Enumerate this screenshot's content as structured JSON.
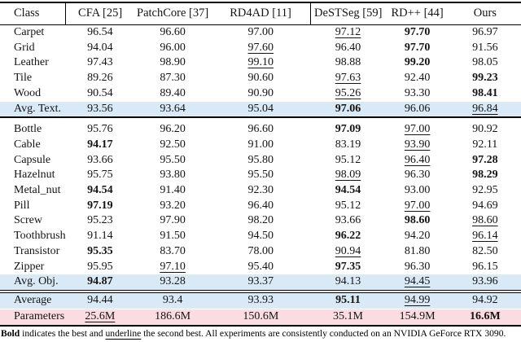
{
  "colors": {
    "highlight_blue": "#d9e9f6",
    "highlight_pink": "#fbdce1",
    "rule_black": "#000000"
  },
  "table": {
    "header": [
      "Class",
      "CFA [25]",
      "PatchCore [37]",
      "RD4AD [11]",
      "DeSTSeg [59]",
      "RD++ [44]",
      "Ours"
    ],
    "header_dividers_after": [
      0,
      3
    ],
    "rows": [
      {
        "label": "Carpet",
        "hl": "",
        "cells": [
          [
            "96.54",
            ""
          ],
          [
            "96.60",
            ""
          ],
          [
            "97.00",
            ""
          ],
          [
            "97.12",
            "u"
          ],
          [
            "97.70",
            "b"
          ],
          [
            "96.97",
            ""
          ]
        ]
      },
      {
        "label": "Grid",
        "hl": "",
        "cells": [
          [
            "94.04",
            ""
          ],
          [
            "96.00",
            ""
          ],
          [
            "97.60",
            "u"
          ],
          [
            "96.40",
            ""
          ],
          [
            "97.70",
            "b"
          ],
          [
            "91.56",
            ""
          ]
        ]
      },
      {
        "label": "Leather",
        "hl": "",
        "cells": [
          [
            "97.43",
            ""
          ],
          [
            "98.90",
            ""
          ],
          [
            "99.10",
            "u"
          ],
          [
            "98.88",
            ""
          ],
          [
            "99.20",
            "b"
          ],
          [
            "98.05",
            ""
          ]
        ]
      },
      {
        "label": "Tile",
        "hl": "",
        "cells": [
          [
            "89.26",
            ""
          ],
          [
            "87.30",
            ""
          ],
          [
            "90.60",
            ""
          ],
          [
            "97.63",
            "u"
          ],
          [
            "92.40",
            ""
          ],
          [
            "99.23",
            "b"
          ]
        ]
      },
      {
        "label": "Wood",
        "hl": "",
        "cells": [
          [
            "90.54",
            ""
          ],
          [
            "89.40",
            ""
          ],
          [
            "90.90",
            ""
          ],
          [
            "95.26",
            "u"
          ],
          [
            "93.30",
            ""
          ],
          [
            "98.41",
            "b"
          ]
        ]
      },
      {
        "label": "Avg. Text.",
        "hl": "blue",
        "rule_after": "single",
        "cells": [
          [
            "93.56",
            ""
          ],
          [
            "93.64",
            ""
          ],
          [
            "95.04",
            ""
          ],
          [
            "97.06",
            "b"
          ],
          [
            "96.06",
            ""
          ],
          [
            "96.84",
            "u"
          ]
        ]
      },
      {
        "label": "Bottle",
        "hl": "",
        "cells": [
          [
            "95.76",
            ""
          ],
          [
            "96.20",
            ""
          ],
          [
            "96.60",
            ""
          ],
          [
            "97.09",
            "b"
          ],
          [
            "97.00",
            "u"
          ],
          [
            "90.92",
            ""
          ]
        ]
      },
      {
        "label": "Cable",
        "hl": "",
        "cells": [
          [
            "94.17",
            "b"
          ],
          [
            "92.50",
            ""
          ],
          [
            "91.00",
            ""
          ],
          [
            "83.19",
            ""
          ],
          [
            "93.90",
            "u"
          ],
          [
            "92.11",
            ""
          ]
        ]
      },
      {
        "label": "Capsule",
        "hl": "",
        "cells": [
          [
            "93.66",
            ""
          ],
          [
            "95.50",
            ""
          ],
          [
            "95.80",
            ""
          ],
          [
            "95.12",
            ""
          ],
          [
            "96.40",
            "u"
          ],
          [
            "97.28",
            "b"
          ]
        ]
      },
      {
        "label": "Hazelnut",
        "hl": "",
        "cells": [
          [
            "95.75",
            ""
          ],
          [
            "93.80",
            ""
          ],
          [
            "95.50",
            ""
          ],
          [
            "98.09",
            "u"
          ],
          [
            "96.30",
            ""
          ],
          [
            "98.29",
            "b"
          ]
        ]
      },
      {
        "label": "Metal_nut",
        "hl": "",
        "cells": [
          [
            "94.54",
            "b"
          ],
          [
            "91.40",
            ""
          ],
          [
            "92.30",
            ""
          ],
          [
            "94.54",
            "b"
          ],
          [
            "93.00",
            ""
          ],
          [
            "92.95",
            ""
          ]
        ]
      },
      {
        "label": "Pill",
        "hl": "",
        "cells": [
          [
            "97.19",
            "b"
          ],
          [
            "93.20",
            ""
          ],
          [
            "96.40",
            ""
          ],
          [
            "95.12",
            ""
          ],
          [
            "97.00",
            "u"
          ],
          [
            "94.69",
            ""
          ]
        ]
      },
      {
        "label": "Screw",
        "hl": "",
        "cells": [
          [
            "95.23",
            ""
          ],
          [
            "97.90",
            ""
          ],
          [
            "98.20",
            ""
          ],
          [
            "93.66",
            ""
          ],
          [
            "98.60",
            "b"
          ],
          [
            "98.60",
            "u"
          ]
        ]
      },
      {
        "label": "Toothbrush",
        "hl": "",
        "cells": [
          [
            "91.14",
            ""
          ],
          [
            "91.50",
            ""
          ],
          [
            "94.50",
            ""
          ],
          [
            "96.22",
            "b"
          ],
          [
            "94.20",
            ""
          ],
          [
            "96.14",
            "u"
          ]
        ]
      },
      {
        "label": "Transistor",
        "hl": "",
        "cells": [
          [
            "95.35",
            "b"
          ],
          [
            "83.70",
            ""
          ],
          [
            "78.00",
            ""
          ],
          [
            "90.94",
            "u"
          ],
          [
            "81.80",
            ""
          ],
          [
            "82.50",
            ""
          ]
        ]
      },
      {
        "label": "Zipper",
        "hl": "",
        "cells": [
          [
            "95.95",
            ""
          ],
          [
            "97.10",
            "u"
          ],
          [
            "95.40",
            ""
          ],
          [
            "97.35",
            "b"
          ],
          [
            "96.30",
            ""
          ],
          [
            "96.15",
            ""
          ]
        ]
      },
      {
        "label": "Avg. Obj.",
        "hl": "blue",
        "rule_after": "double",
        "cells": [
          [
            "94.87",
            "b"
          ],
          [
            "93.28",
            ""
          ],
          [
            "93.37",
            ""
          ],
          [
            "94.13",
            ""
          ],
          [
            "94.45",
            "u"
          ],
          [
            "93.96",
            ""
          ]
        ]
      },
      {
        "label": "Average",
        "hl": "blue",
        "cells": [
          [
            "94.44",
            ""
          ],
          [
            "93.4",
            ""
          ],
          [
            "93.93",
            ""
          ],
          [
            "95.11",
            "b"
          ],
          [
            "94.99",
            "u"
          ],
          [
            "94.92",
            ""
          ]
        ]
      },
      {
        "label": "Parameters",
        "hl": "pink",
        "cells": [
          [
            "25.6M",
            "u"
          ],
          [
            "186.6M",
            ""
          ],
          [
            "150.6M",
            ""
          ],
          [
            "35.1M",
            ""
          ],
          [
            "154.9M",
            ""
          ],
          [
            "16.6M",
            "b"
          ]
        ]
      }
    ]
  },
  "footnote": {
    "parts": [
      {
        "text": "Bold",
        "style": "b"
      },
      {
        "text": " indicates the best and ",
        "style": ""
      },
      {
        "text": "underline",
        "style": "u"
      },
      {
        "text": " the second best. All experiments are consistently conducted on an NVIDIA GeForce RTX 3090.",
        "style": ""
      }
    ]
  }
}
